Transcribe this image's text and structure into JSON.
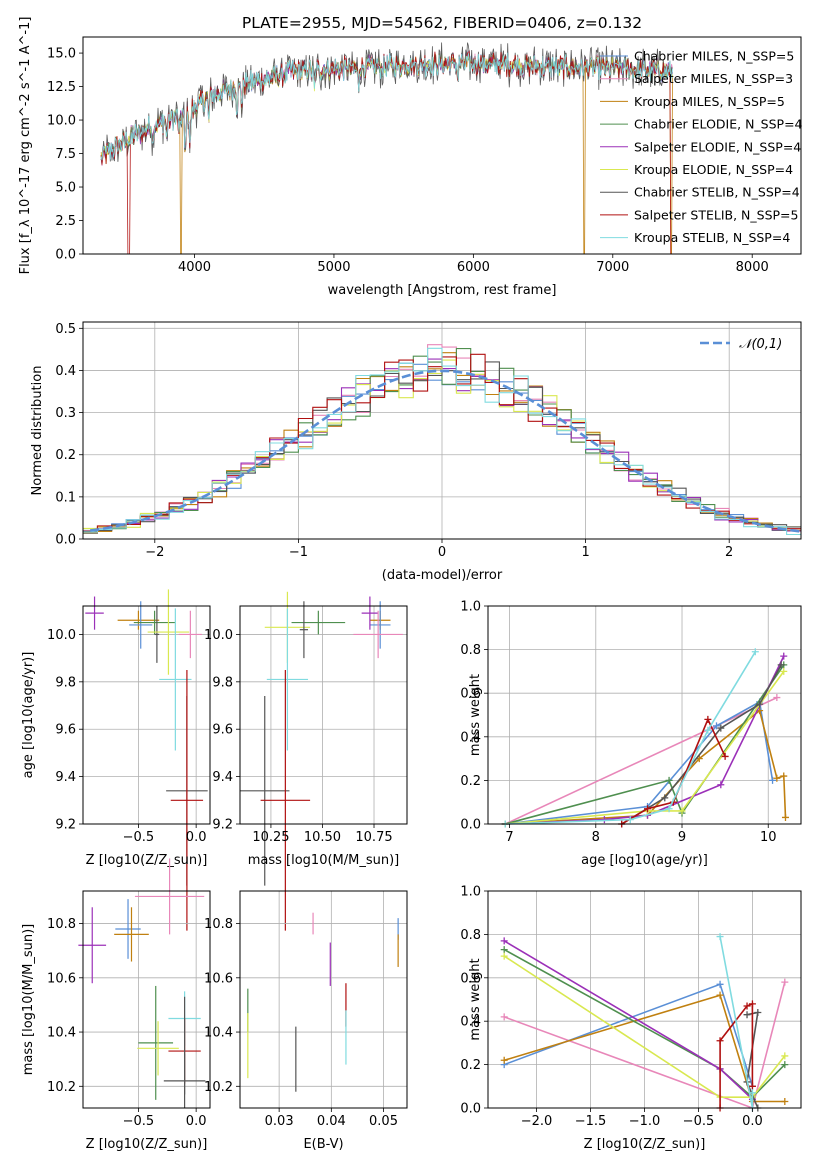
{
  "chart_data": [
    {
      "id": "spectrum",
      "type": "line",
      "title": "PLATE=2955, MJD=54562, FIBERID=0406, z=0.132",
      "xlabel": "wavelength [Angstrom, rest frame]",
      "ylabel": "Flux [f_λ 10^-17 erg cm^-2 s^-1 A^-1]",
      "xlim": [
        3200,
        8350
      ],
      "ylim": [
        0,
        16.2
      ],
      "xticks": [
        4000,
        5000,
        6000,
        7000,
        8000
      ],
      "yticks": [
        0.0,
        2.5,
        5.0,
        7.5,
        10.0,
        12.5,
        15.0
      ],
      "legend_position": "upper right",
      "series": [
        {
          "name": "Chabrier MILES, N_SSP=5",
          "color": "#5a8fd6"
        },
        {
          "name": "Salpeter MILES, N_SSP=3",
          "color": "#e887b9"
        },
        {
          "name": "Kroupa MILES, N_SSP=5",
          "color": "#c08010"
        },
        {
          "name": "Chabrier ELODIE, N_SSP=4",
          "color": "#4f8f4f"
        },
        {
          "name": "Salpeter ELODIE, N_SSP=4",
          "color": "#9b30b8"
        },
        {
          "name": "Kroupa ELODIE, N_SSP=4",
          "color": "#d9e850"
        },
        {
          "name": "Chabrier STELIB, N_SSP=4",
          "color": "#555555"
        },
        {
          "name": "Salpeter STELIB, N_SSP=5",
          "color": "#b01010"
        },
        {
          "name": "Kroupa STELIB, N_SSP=4",
          "color": "#80dbe0"
        }
      ],
      "continuum": {
        "x": [
          3330,
          3500,
          3700,
          3950,
          4100,
          4400,
          4700,
          5000,
          5500,
          6000,
          6500,
          7000,
          7430
        ],
        "y": [
          7.2,
          8.4,
          9.6,
          10.5,
          11.8,
          12.8,
          13.6,
          13.8,
          14.1,
          14.3,
          14.0,
          13.9,
          13.6
        ]
      }
    },
    {
      "id": "residuals",
      "type": "line",
      "xlabel": "(data-model)/error",
      "ylabel": "Normed distribution",
      "xlim": [
        -2.5,
        2.5
      ],
      "ylim": [
        0,
        0.515
      ],
      "xticks": [
        -2,
        -1,
        0,
        1,
        2
      ],
      "yticks": [
        0.0,
        0.1,
        0.2,
        0.3,
        0.4,
        0.5
      ],
      "grid": true,
      "legend": "𝒩(0,1)",
      "legend_position": "upper right",
      "reference": {
        "name": "𝒩(0,1)",
        "color": "#5a8fd6",
        "style": "dashed"
      },
      "bin_width": 0.1
    },
    {
      "id": "age-vs-Z",
      "type": "scatter",
      "xlabel": "Z [log10(Z/Z_sun)]",
      "ylabel": "age [log10(age/yr)]",
      "xlim": [
        -0.98,
        0.12
      ],
      "ylim": [
        9.2,
        10.12
      ],
      "xticks": [
        -0.5,
        0.0
      ],
      "yticks": [
        9.2,
        9.4,
        9.6,
        9.8,
        10.0
      ],
      "points": [
        {
          "color": "#9b30b8",
          "x": -0.88,
          "y": 10.09,
          "xerr": 0.08,
          "yerr": 0.07
        },
        {
          "color": "#c08010",
          "x": -0.5,
          "y": 10.06,
          "xerr": 0.18,
          "yerr": 0.04
        },
        {
          "color": "#5a8fd6",
          "x": -0.48,
          "y": 10.04,
          "xerr": 0.1,
          "yerr": 0.1
        },
        {
          "color": "#4f8f4f",
          "x": -0.36,
          "y": 10.05,
          "xerr": 0.18,
          "yerr": 0.05
        },
        {
          "color": "#555555",
          "x": -0.34,
          "y": 10.0,
          "xerr": 0.02,
          "yerr": 0.12
        },
        {
          "color": "#e887b9",
          "x": -0.05,
          "y": 10.0,
          "xerr": 0.1,
          "yerr": 0.1
        },
        {
          "color": "#d9e850",
          "x": -0.24,
          "y": 10.01,
          "xerr": 0.18,
          "yerr": 0.18
        },
        {
          "color": "#80dbe0",
          "x": -0.18,
          "y": 9.81,
          "xerr": 0.14,
          "yerr": 0.3
        },
        {
          "color": "#555555",
          "x": -0.08,
          "y": 9.34,
          "xerr": 0.18,
          "yerr": 0.4
        },
        {
          "color": "#b01010",
          "x": -0.08,
          "y": 9.3,
          "xerr": 0.14,
          "yerr": 0.55
        }
      ]
    },
    {
      "id": "age-vs-mass",
      "type": "scatter",
      "xlabel": "mass [log10(M/M_sun)]",
      "ylabel": "",
      "xlim": [
        10.1,
        10.91
      ],
      "ylim": [
        9.2,
        10.12
      ],
      "xticks": [
        10.25,
        10.5,
        10.75
      ],
      "yticks": [
        9.2,
        9.4,
        9.6,
        9.8,
        10.0
      ],
      "points": [
        {
          "color": "#4f8f4f",
          "x": 10.48,
          "y": 10.05,
          "xerr": 0.13,
          "yerr": 0.05
        },
        {
          "color": "#c08010",
          "x": 10.78,
          "y": 10.06,
          "xerr": 0.05,
          "yerr": 0.04
        },
        {
          "color": "#5a8fd6",
          "x": 10.78,
          "y": 10.04,
          "xerr": 0.05,
          "yerr": 0.1
        },
        {
          "color": "#9b30b8",
          "x": 10.73,
          "y": 10.09,
          "xerr": 0.04,
          "yerr": 0.07
        },
        {
          "color": "#e887b9",
          "x": 10.77,
          "y": 10.0,
          "xerr": 0.12,
          "yerr": 0.1
        },
        {
          "color": "#d9e850",
          "x": 10.33,
          "y": 10.03,
          "xerr": 0.11,
          "yerr": 0.15
        },
        {
          "color": "#555555",
          "x": 10.41,
          "y": 10.02,
          "xerr": 0.02,
          "yerr": 0.12
        },
        {
          "color": "#80dbe0",
          "x": 10.33,
          "y": 9.81,
          "xerr": 0.1,
          "yerr": 0.3
        },
        {
          "color": "#555555",
          "x": 10.22,
          "y": 9.34,
          "xerr": 0.12,
          "yerr": 0.4
        },
        {
          "color": "#b01010",
          "x": 10.32,
          "y": 9.3,
          "xerr": 0.12,
          "yerr": 0.55
        }
      ]
    },
    {
      "id": "massweight-vs-age",
      "type": "line",
      "xlabel": "age [log10(age/yr)]",
      "ylabel": "mass weight",
      "xlim": [
        6.75,
        10.38
      ],
      "ylim": [
        0,
        1.0
      ],
      "xticks": [
        7,
        8,
        9,
        10
      ],
      "yticks": [
        0.0,
        0.2,
        0.4,
        0.6,
        0.8,
        1.0
      ],
      "grid": true,
      "series": [
        {
          "color": "#e887b9",
          "x": [
            6.95,
            10.1
          ],
          "y": [
            0.0,
            0.58
          ]
        },
        {
          "color": "#5a8fd6",
          "x": [
            6.95,
            8.6,
            9.4,
            9.9,
            10.05
          ],
          "y": [
            0.0,
            0.08,
            0.45,
            0.56,
            0.2
          ]
        },
        {
          "color": "#c08010",
          "x": [
            6.95,
            8.6,
            9.2,
            9.9,
            10.1,
            10.18,
            10.2
          ],
          "y": [
            0.0,
            0.04,
            0.3,
            0.52,
            0.21,
            0.22,
            0.03
          ]
        },
        {
          "color": "#4f8f4f",
          "x": [
            6.95,
            8.85,
            9.0,
            10.18
          ],
          "y": [
            0.0,
            0.2,
            0.05,
            0.73
          ]
        },
        {
          "color": "#9b30b8",
          "x": [
            6.95,
            8.1,
            8.6,
            9.45,
            10.18
          ],
          "y": [
            0.0,
            0.02,
            0.04,
            0.18,
            0.77
          ]
        },
        {
          "color": "#d9e850",
          "x": [
            6.95,
            8.6,
            9.0,
            10.18
          ],
          "y": [
            0.0,
            0.06,
            0.06,
            0.7
          ]
        },
        {
          "color": "#555555",
          "x": [
            8.3,
            8.8,
            9.45,
            9.9,
            10.15
          ],
          "y": [
            0.0,
            0.12,
            0.44,
            0.55,
            0.73
          ]
        },
        {
          "color": "#b01010",
          "x": [
            8.3,
            8.6,
            8.9,
            9.3,
            9.5
          ],
          "y": [
            0.0,
            0.07,
            0.1,
            0.48,
            0.31
          ]
        },
        {
          "color": "#80dbe0",
          "x": [
            6.95,
            8.4,
            8.85,
            9.3,
            9.85
          ],
          "y": [
            0.0,
            0.02,
            0.07,
            0.43,
            0.79
          ]
        }
      ]
    },
    {
      "id": "mass-vs-Z",
      "type": "scatter",
      "xlabel": "Z [log10(Z/Z_sun)]",
      "ylabel": "mass [log10(M/M_sun)]",
      "xlim": [
        -0.98,
        0.12
      ],
      "ylim": [
        10.12,
        10.92
      ],
      "xticks": [
        -0.5,
        0.0
      ],
      "yticks": [
        10.2,
        10.4,
        10.6,
        10.8
      ],
      "points": [
        {
          "color": "#e887b9",
          "x": -0.23,
          "y": 10.9,
          "xerr": 0.3,
          "yerr": 0.14
        },
        {
          "color": "#5a8fd6",
          "x": -0.59,
          "y": 10.78,
          "xerr": 0.11,
          "yerr": 0.11
        },
        {
          "color": "#c08010",
          "x": -0.56,
          "y": 10.76,
          "xerr": 0.15,
          "yerr": 0.1
        },
        {
          "color": "#9b30b8",
          "x": -0.9,
          "y": 10.72,
          "xerr": 0.12,
          "yerr": 0.14
        },
        {
          "color": "#4f8f4f",
          "x": -0.35,
          "y": 10.36,
          "xerr": 0.15,
          "yerr": 0.21
        },
        {
          "color": "#d9e850",
          "x": -0.33,
          "y": 10.34,
          "xerr": 0.18,
          "yerr": 0.1
        },
        {
          "color": "#80dbe0",
          "x": -0.1,
          "y": 10.45,
          "xerr": 0.14,
          "yerr": 0.1
        },
        {
          "color": "#b01010",
          "x": -0.1,
          "y": 10.33,
          "xerr": 0.14,
          "yerr": 0.12
        },
        {
          "color": "#555555",
          "x": -0.1,
          "y": 10.22,
          "xerr": 0.18,
          "yerr": 0.1
        },
        {
          "color": "#555555",
          "x": -0.1,
          "y": 10.35,
          "xerr": 0.0,
          "yerr": 0.18
        }
      ]
    },
    {
      "id": "mass-vs-EBV",
      "type": "scatter",
      "xlabel": "E(B-V)",
      "ylabel": "",
      "xlim": [
        0.0225,
        0.0545
      ],
      "ylim": [
        10.12,
        10.92
      ],
      "xticks": [
        0.03,
        0.04,
        0.05
      ],
      "yticks": [
        10.2,
        10.4,
        10.6,
        10.8
      ],
      "points": [
        {
          "color": "#e887b9",
          "x": 0.0365,
          "y": 10.8,
          "yerr": 0.04
        },
        {
          "color": "#5a8fd6",
          "x": 0.0528,
          "y": 10.78,
          "yerr": 0.04
        },
        {
          "color": "#c08010",
          "x": 0.0528,
          "y": 10.7,
          "yerr": 0.06
        },
        {
          "color": "#9b30b8",
          "x": 0.0398,
          "y": 10.65,
          "yerr": 0.08
        },
        {
          "color": "#4f8f4f",
          "x": 0.024,
          "y": 10.48,
          "yerr": 0.08
        },
        {
          "color": "#d9e850",
          "x": 0.024,
          "y": 10.35,
          "yerr": 0.12
        },
        {
          "color": "#555555",
          "x": 0.0332,
          "y": 10.3,
          "yerr": 0.12
        },
        {
          "color": "#b01010",
          "x": 0.0428,
          "y": 10.5,
          "yerr": 0.08
        },
        {
          "color": "#80dbe0",
          "x": 0.0428,
          "y": 10.38,
          "yerr": 0.1
        }
      ]
    },
    {
      "id": "massweight-vs-Z",
      "type": "line",
      "xlabel": "Z [log10(Z/Z_sun)]",
      "ylabel": "mass weight",
      "xlim": [
        -2.45,
        0.45
      ],
      "ylim": [
        0,
        1.0
      ],
      "xticks": [
        -2.0,
        -1.5,
        -1.0,
        -0.5,
        0.0
      ],
      "yticks": [
        0.0,
        0.2,
        0.4,
        0.6,
        0.8,
        1.0
      ],
      "grid": true,
      "series": [
        {
          "color": "#e887b9",
          "x": [
            -2.3,
            0.0,
            0.3
          ],
          "y": [
            0.42,
            0.0,
            0.58
          ]
        },
        {
          "color": "#5a8fd6",
          "x": [
            -2.3,
            -0.3,
            0.0
          ],
          "y": [
            0.2,
            0.57,
            0.1
          ]
        },
        {
          "color": "#c08010",
          "x": [
            -2.3,
            -0.3,
            0.0,
            0.3
          ],
          "y": [
            0.22,
            0.52,
            0.03,
            0.03
          ]
        },
        {
          "color": "#4f8f4f",
          "x": [
            -2.3,
            -0.3,
            0.0,
            0.3
          ],
          "y": [
            0.73,
            0.18,
            0.05,
            0.2
          ]
        },
        {
          "color": "#9b30b8",
          "x": [
            -2.3,
            -0.3,
            0.0
          ],
          "y": [
            0.77,
            0.18,
            0.04
          ]
        },
        {
          "color": "#d9e850",
          "x": [
            -2.3,
            -0.3,
            0.0,
            0.3
          ],
          "y": [
            0.7,
            0.05,
            0.05,
            0.24
          ]
        },
        {
          "color": "#555555",
          "x": [
            -0.05,
            0.05,
            -0.05,
            0.05
          ],
          "y": [
            0.43,
            0.44,
            0.12,
            0.0
          ]
        },
        {
          "color": "#b01010",
          "x": [
            -0.3,
            -0.3,
            -0.05,
            0.0,
            0.0
          ],
          "y": [
            0.0,
            0.31,
            0.47,
            0.48,
            0.1
          ]
        },
        {
          "color": "#80dbe0",
          "x": [
            -0.3,
            0.0,
            0.0
          ],
          "y": [
            0.79,
            0.0,
            0.07
          ]
        }
      ]
    }
  ]
}
